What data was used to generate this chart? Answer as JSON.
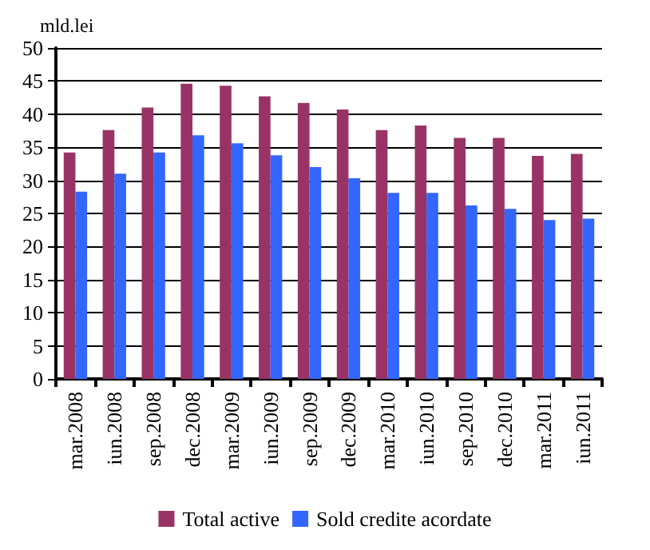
{
  "chart_data": {
    "type": "bar",
    "ylabel": "mld.lei",
    "categories": [
      "mar.2008",
      "iun.2008",
      "sep.2008",
      "dec.2008",
      "mar.2009",
      "iun.2009",
      "sep.2009",
      "dec.2009",
      "mar.2010",
      "iun.2010",
      "sep.2010",
      "dec.2010",
      "mar.2011",
      "iun.2011"
    ],
    "series": [
      {
        "name": "Total active",
        "color": "#993366",
        "values": [
          34.2,
          37.6,
          41,
          44.6,
          44.3,
          42.7,
          41.7,
          40.7,
          37.6,
          38.3,
          36.4,
          36.4,
          33.7,
          34.0
        ]
      },
      {
        "name": "Sold credite acordate",
        "color": "#3366ff",
        "values": [
          28.3,
          31.0,
          34.2,
          36.8,
          35.6,
          33.8,
          32.0,
          30.3,
          28.1,
          28.1,
          26.2,
          25.7,
          24.0,
          24.2
        ]
      }
    ],
    "ylim": [
      0,
      50
    ],
    "yticks": [
      0,
      5,
      10,
      15,
      20,
      25,
      30,
      35,
      40,
      45,
      50
    ],
    "grid": "y",
    "legend": "bottom"
  }
}
